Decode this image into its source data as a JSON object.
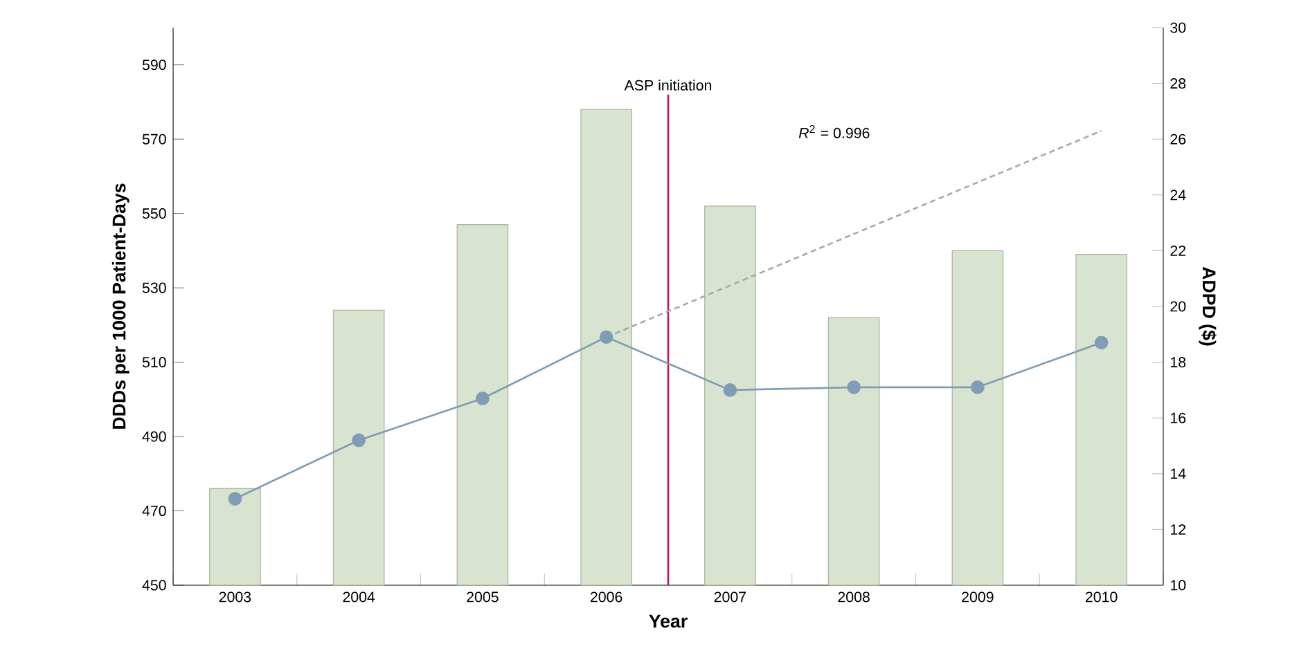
{
  "chart_data": {
    "type": "bar",
    "xlabel": "Year",
    "ylabel": "DDDs per 1000 Patient-Days",
    "y2label": "ADPD ($)",
    "x": [
      2003,
      2004,
      2005,
      2006,
      2007,
      2008,
      2009,
      2010
    ],
    "xlim": [
      2002.5,
      2010.5
    ],
    "xticks": [
      2003,
      2004,
      2005,
      2006,
      2007,
      2008,
      2009,
      2010
    ],
    "ylim": [
      450,
      600
    ],
    "yticks": [
      450,
      470,
      490,
      510,
      530,
      550,
      570,
      590
    ],
    "y2lim": [
      10,
      30
    ],
    "y2ticks": [
      10,
      12,
      14,
      16,
      18,
      20,
      22,
      24,
      26,
      28,
      30
    ],
    "series": [
      {
        "color": "#d9e4d0",
        "values": [
          476,
          524,
          547,
          578,
          552,
          522,
          540,
          539
        ]
      },
      {
        "type": "line",
        "axis": "y2",
        "color": "#7f9db4",
        "marker": "circle",
        "values": [
          13.1,
          15.2,
          16.7,
          18.9,
          17.0,
          17.1,
          17.1,
          18.7
        ]
      },
      {
        "type": "line",
        "axis": "y2",
        "color": "#a3aab2",
        "marker": "none",
        "line_style": "dashed",
        "x": [
          2006,
          2010
        ],
        "values": [
          18.9,
          26.3
        ]
      }
    ],
    "ref_lines": [
      {
        "axis": "x",
        "value": 2006.5,
        "label": "ASP initiation",
        "color": "#c2185b"
      }
    ],
    "annotations": [
      "*R*$^{2}$ = 0.996"
    ],
    "grid": false
  }
}
